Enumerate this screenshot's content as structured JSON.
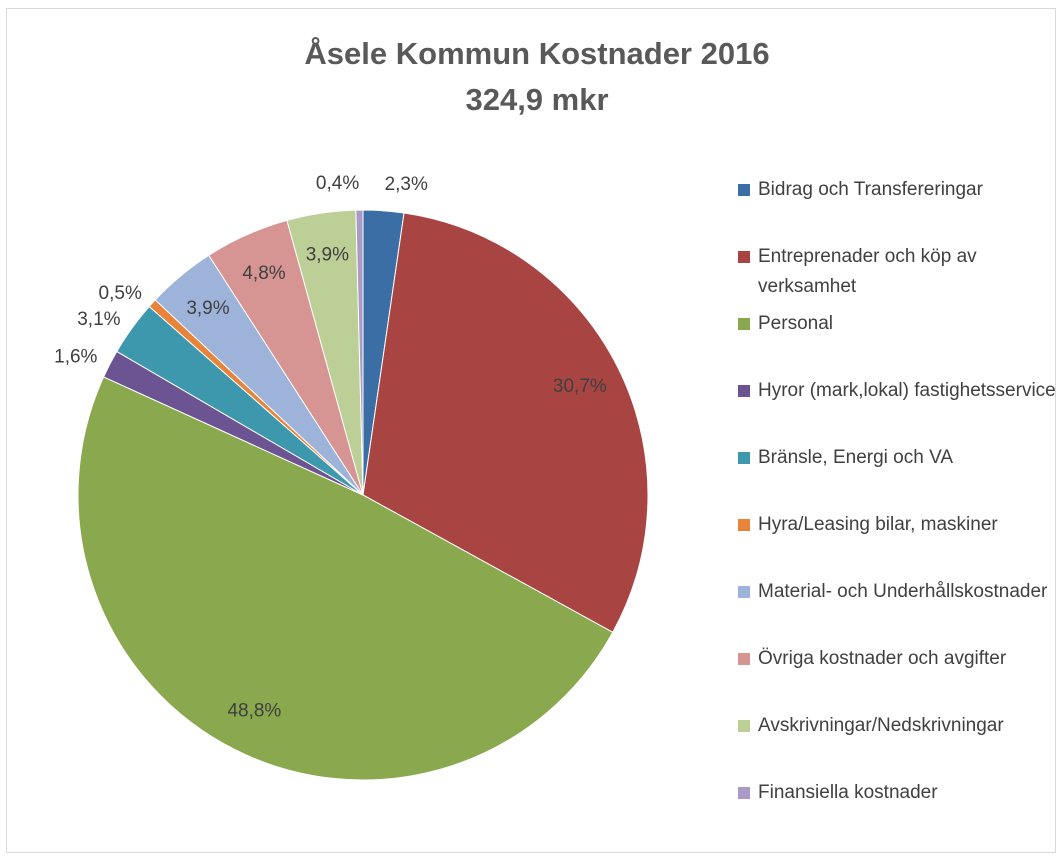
{
  "chart_data": {
    "type": "pie",
    "title": "Åsele Kommun Kostnader 2016",
    "subtitle": "324,9 mkr",
    "categories": [
      "Bidrag och Transfereringar",
      "Entreprenader och köp av verksamhet",
      "Personal",
      "Hyror (mark,lokal) fastighetsservice",
      "Bränsle, Energi och VA",
      "Hyra/Leasing bilar, maskiner",
      "Material- och Underhållskostnader",
      "Övriga kostnader och avgifter",
      "Avskrivningar/Nedskrivningar",
      "Finansiella kostnader"
    ],
    "values": [
      2.3,
      30.7,
      48.8,
      1.6,
      3.1,
      0.5,
      3.9,
      4.8,
      3.9,
      0.4
    ],
    "value_labels": [
      "2,3%",
      "30,7%",
      "48,8%",
      "1,6%",
      "3,1%",
      "0,5%",
      "3,9%",
      "4,8%",
      "3,9%",
      "0,4%"
    ],
    "colors": [
      "#3b6ea5",
      "#a84442",
      "#8aa84d",
      "#6c5391",
      "#3d98ad",
      "#e8843a",
      "#9db3d9",
      "#d69593",
      "#bccf97",
      "#a99bc5"
    ],
    "legend": "right"
  }
}
